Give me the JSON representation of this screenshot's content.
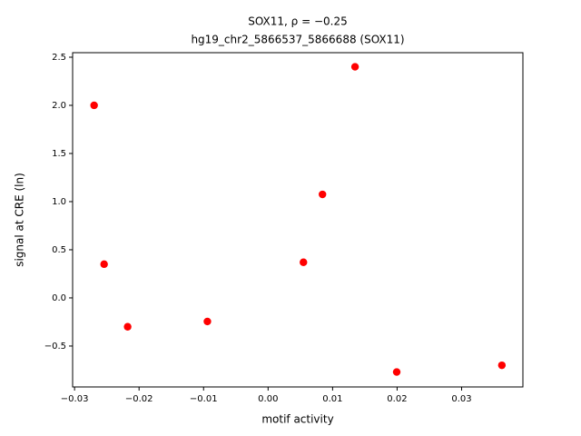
{
  "chart_data": {
    "type": "scatter",
    "title": "SOX11, ρ = −0.25",
    "subtitle": "hg19_chr2_5866537_5866688 (SOX11)",
    "x_label": "motif activity",
    "y_label": "signal at CRE (ln)",
    "color": "#ff0000",
    "x": [
      -0.02697,
      -0.02542,
      -0.02177,
      -0.00941,
      0.00548,
      0.00843,
      0.01348,
      0.01994,
      0.03624
    ],
    "values": [
      2.0,
      0.35,
      -0.3,
      -0.245,
      0.37,
      1.075,
      2.4,
      -0.77,
      -0.7
    ],
    "xlim": [
      -0.0303,
      0.0395
    ],
    "ylim": [
      -0.925,
      2.547
    ],
    "xticks": [
      {
        "value": -0.03,
        "label": "−0.03"
      },
      {
        "value": -0.02,
        "label": "−0.02"
      },
      {
        "value": -0.01,
        "label": "−0.01"
      },
      {
        "value": 0,
        "label": "0.00"
      },
      0.01,
      0.02,
      0.03
    ],
    "yticks": [
      {
        "value": -0.5,
        "label": "−0.5"
      },
      {
        "value": 0,
        "label": "0.0"
      },
      0.5,
      {
        "value": 1,
        "label": "1.0"
      },
      1.5,
      {
        "value": 2,
        "label": "2.0"
      },
      2.5
    ]
  }
}
